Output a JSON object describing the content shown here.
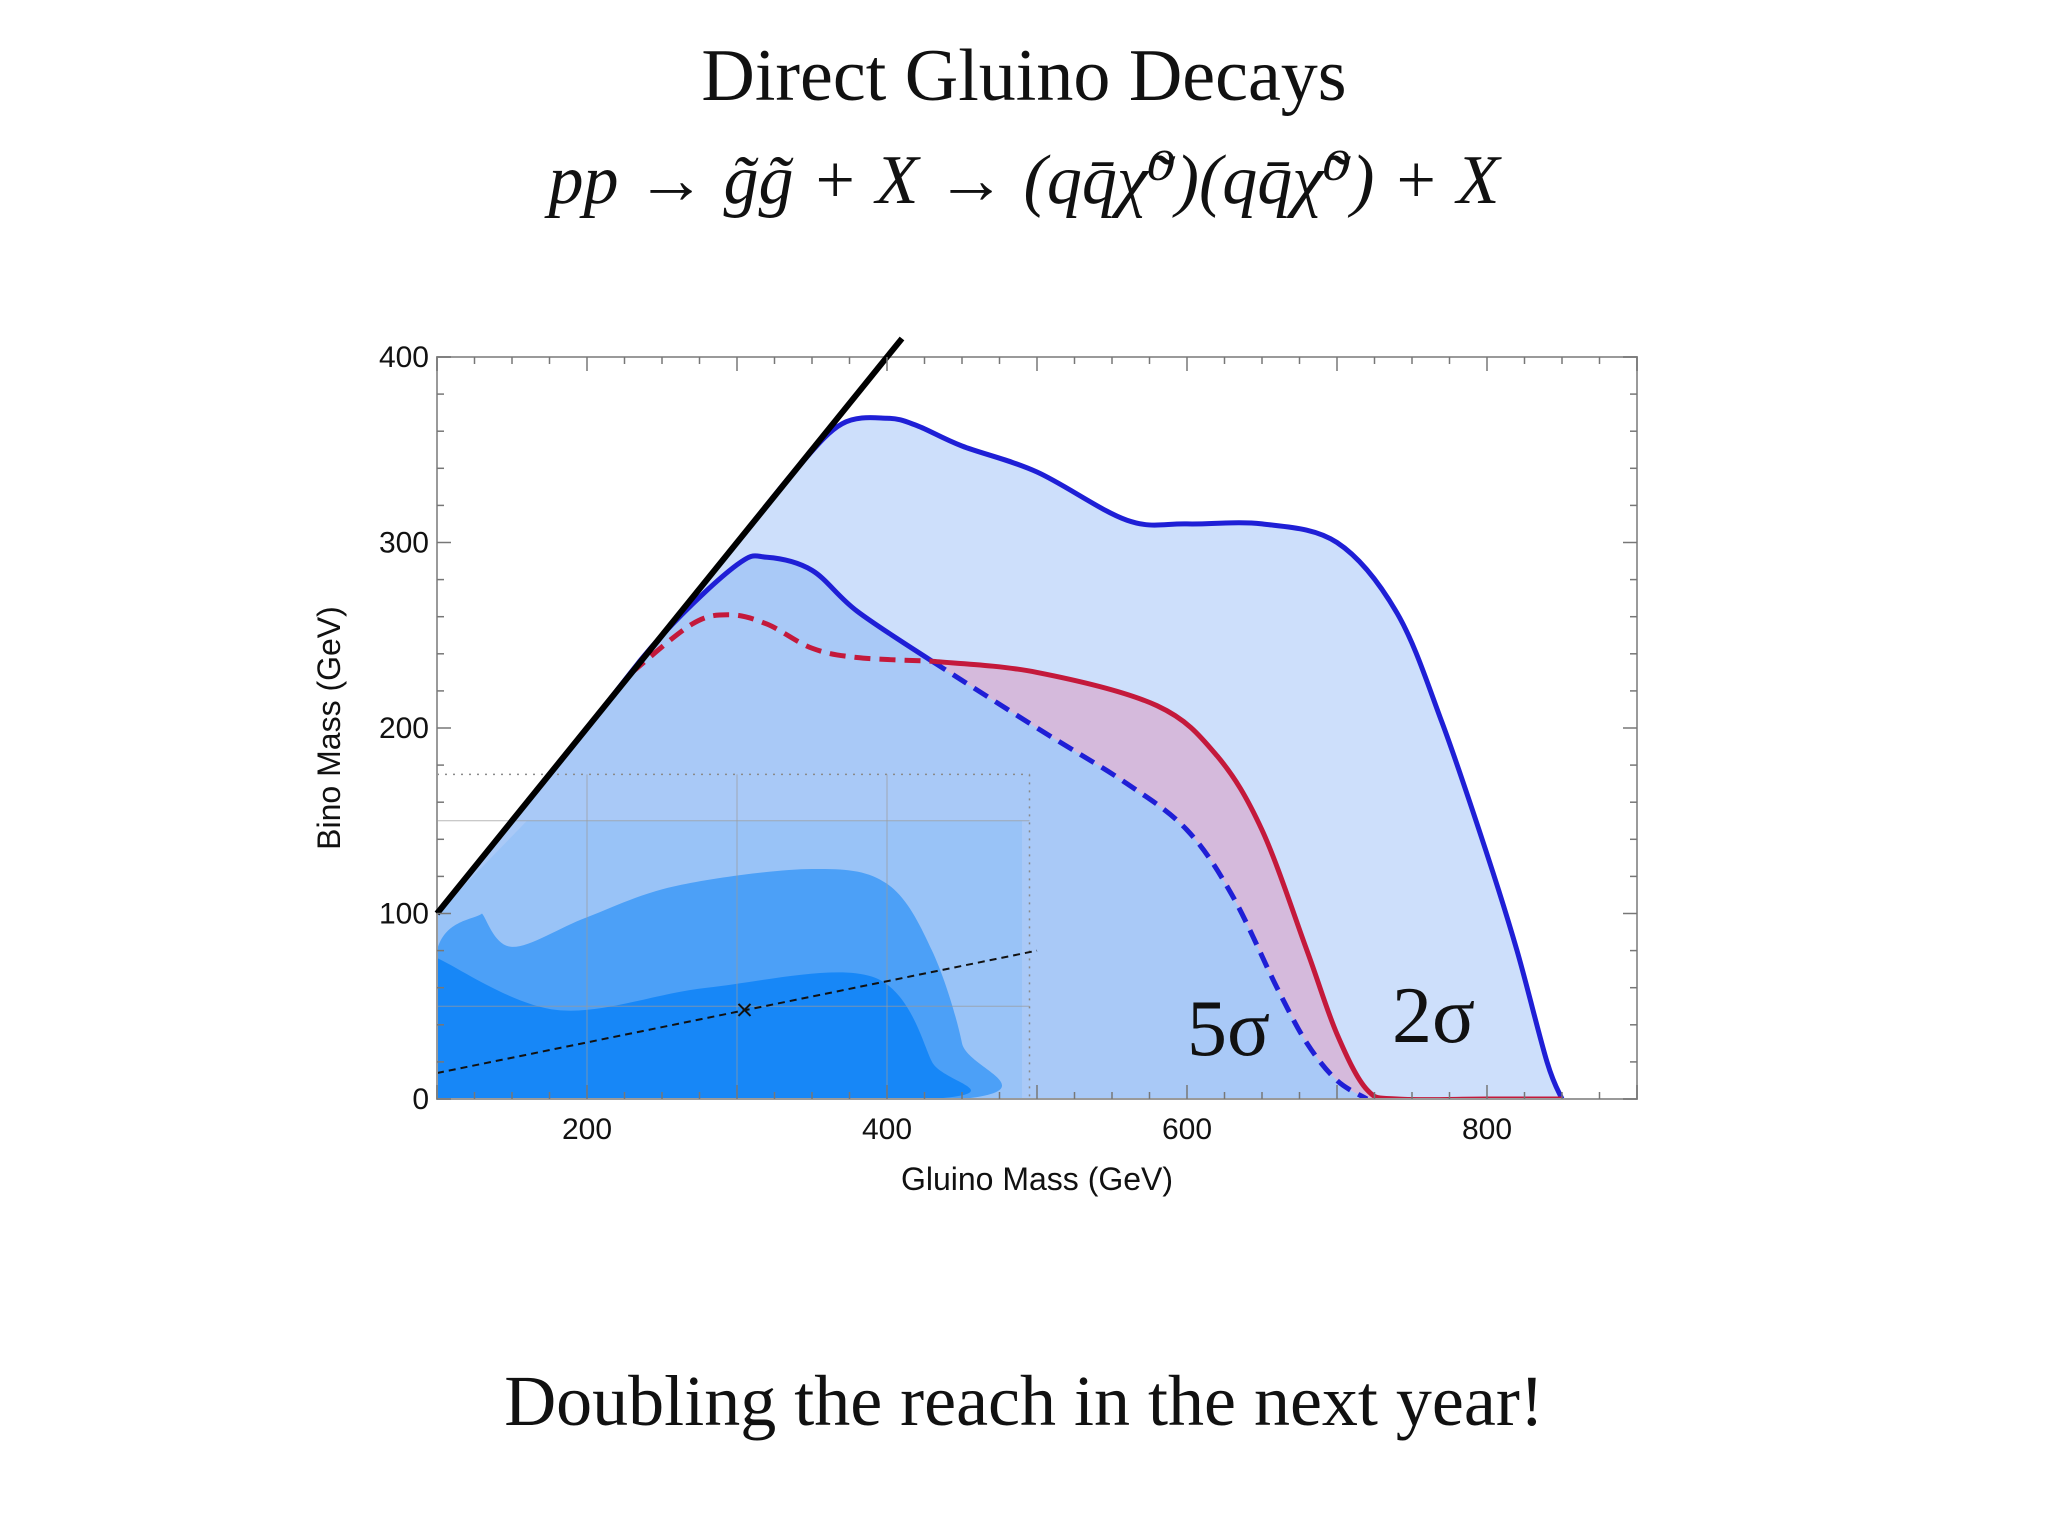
{
  "slide": {
    "title": "Direct Gluino Decays",
    "formula": "pp → g̃g̃ + X → (qq̄χ̃⁰)(qq̄χ̃⁰) + X",
    "caption": "Doubling the reach in the next year!"
  },
  "chart_data": {
    "type": "area",
    "xlabel": "Gluino Mass (GeV)",
    "ylabel": "Bino Mass (GeV)",
    "xlim": [
      100,
      900
    ],
    "ylim": [
      0,
      400
    ],
    "xticks": [
      200,
      400,
      600,
      800
    ],
    "yticks": [
      0,
      100,
      200,
      300,
      400
    ],
    "annotations": [
      "5σ",
      "2σ"
    ],
    "colors": {
      "outer_fill": "#cddffb",
      "inner_fill": "#a9c9f7",
      "between_fill": "#d6b4d6",
      "blue_line": "#1f1fd6",
      "red_line": "#c4193b",
      "inset_light": "#8dbef7",
      "inset_mid": "#4ca0f7",
      "inset_dark": "#1787f7"
    },
    "kinematic_line": {
      "x": [
        100,
        410
      ],
      "y": [
        100,
        410
      ]
    },
    "series": [
      {
        "style": "solid-blue",
        "fill": "outer",
        "x": [
          100,
          200,
          300,
          340,
          370,
          400,
          420,
          450,
          500,
          560,
          600,
          650,
          700,
          740,
          770,
          800,
          820,
          840,
          850
        ],
        "y": [
          100,
          200,
          300,
          340,
          364,
          367,
          363,
          352,
          338,
          312,
          310,
          310,
          300,
          262,
          203,
          132,
          80,
          20,
          0
        ]
      },
      {
        "style": "solid-blue",
        "fill": "inner",
        "x": [
          100,
          200,
          250,
          300,
          320,
          350,
          380,
          430
        ],
        "y": [
          100,
          200,
          250,
          288,
          292,
          285,
          263,
          236
        ]
      },
      {
        "style": "dashed-red",
        "x": [
          230,
          270,
          295,
          320,
          350,
          380,
          430
        ],
        "y": [
          230,
          256,
          261,
          256,
          243,
          238,
          236
        ]
      },
      {
        "style": "solid-red",
        "x": [
          430,
          500,
          580,
          620,
          650,
          680,
          700,
          720,
          740,
          800,
          850
        ],
        "y": [
          236,
          230,
          212,
          185,
          145,
          80,
          35,
          5,
          0,
          0,
          0
        ]
      },
      {
        "style": "dashed-blue",
        "x": [
          430,
          500,
          560,
          600,
          630,
          660,
          680,
          700,
          720
        ],
        "y": [
          236,
          200,
          170,
          145,
          110,
          60,
          30,
          10,
          0
        ]
      }
    ],
    "inset_regions": [
      {
        "level": "light",
        "x": [
          100,
          160,
          490,
          490,
          440,
          100
        ],
        "y": [
          100,
          150,
          150,
          0,
          0,
          0
        ]
      },
      {
        "level": "mid",
        "x": [
          130,
          150,
          200,
          260,
          350,
          400,
          430,
          450,
          450,
          100,
          100,
          130
        ],
        "y": [
          100,
          82,
          98,
          115,
          124,
          116,
          80,
          30,
          0,
          0,
          80,
          100
        ]
      },
      {
        "level": "dark",
        "x": [
          100,
          180,
          280,
          390,
          430,
          430,
          100
        ],
        "y": [
          76,
          48,
          60,
          66,
          20,
          0,
          0
        ]
      }
    ],
    "inset_line": {
      "x": [
        100,
        500
      ],
      "y": [
        14,
        80
      ]
    },
    "inset_marker": {
      "x": [
        305
      ],
      "y": [
        48
      ]
    }
  }
}
